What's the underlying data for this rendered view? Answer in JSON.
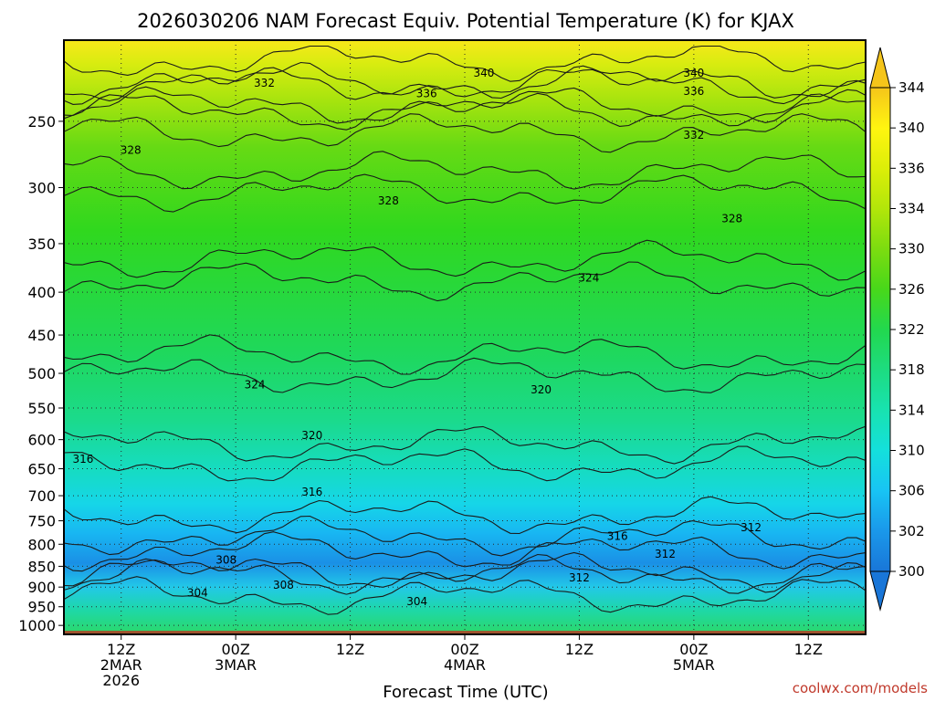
{
  "chart_data": {
    "type": "heatmap",
    "title": "2026030206 NAM Forecast Equiv. Potential Temperature (K) for KJAX",
    "xlabel": "Forecast Time (UTC)",
    "ylabel": "",
    "credit": "coolwx.com/models",
    "y_axis": {
      "scale": "pressure (log-like, inverted)",
      "range_hpa": [
        1025,
        200
      ],
      "ticks": [
        250,
        300,
        350,
        400,
        450,
        500,
        550,
        600,
        650,
        700,
        750,
        800,
        850,
        900,
        950,
        1000
      ]
    },
    "x_axis": {
      "range_hours_from_start": [
        0,
        84
      ],
      "ticks": [
        {
          "hour": 6,
          "line1": "12Z",
          "line2": "2MAR",
          "line3": "2026"
        },
        {
          "hour": 18,
          "line1": "00Z",
          "line2": "3MAR",
          "line3": ""
        },
        {
          "hour": 30,
          "line1": "12Z",
          "line2": "",
          "line3": ""
        },
        {
          "hour": 42,
          "line1": "00Z",
          "line2": "4MAR",
          "line3": ""
        },
        {
          "hour": 54,
          "line1": "12Z",
          "line2": "",
          "line3": ""
        },
        {
          "hour": 66,
          "line1": "00Z",
          "line2": "5MAR",
          "line3": ""
        },
        {
          "hour": 78,
          "line1": "12Z",
          "line2": "",
          "line3": ""
        }
      ]
    },
    "grid": true,
    "colorbar": {
      "levels": [
        300,
        302,
        306,
        310,
        314,
        318,
        322,
        326,
        330,
        334,
        336,
        340,
        344
      ],
      "colors": [
        "#1976d8",
        "#1a98ea",
        "#18c4f4",
        "#14e0dc",
        "#18e2b0",
        "#1ddc80",
        "#22d84e",
        "#48d81a",
        "#7cdc10",
        "#b2e60a",
        "#dcee08",
        "#fff510",
        "#f5c51a"
      ]
    },
    "contours": [
      {
        "level": 340,
        "label_positions": [
          [
            44,
            0.055
          ],
          [
            66,
            0.055
          ]
        ]
      },
      {
        "level": 336,
        "label_positions": [
          [
            38,
            0.09
          ],
          [
            66,
            0.086
          ]
        ]
      },
      {
        "level": 332,
        "label_positions": [
          [
            21,
            0.072
          ],
          [
            66,
            0.16
          ]
        ]
      },
      {
        "level": 328,
        "label_positions": [
          [
            7,
            0.185
          ],
          [
            34,
            0.27
          ],
          [
            70,
            0.3
          ]
        ]
      },
      {
        "level": 324,
        "label_positions": [
          [
            55,
            0.4
          ],
          [
            20,
            0.58
          ]
        ]
      },
      {
        "level": 320,
        "label_positions": [
          [
            50,
            0.588
          ],
          [
            26,
            0.665
          ]
        ]
      },
      {
        "level": 316,
        "label_positions": [
          [
            2,
            0.705
          ],
          [
            26,
            0.76
          ],
          [
            58,
            0.835
          ]
        ]
      },
      {
        "level": 312,
        "label_positions": [
          [
            72,
            0.82
          ],
          [
            63,
            0.865
          ],
          [
            54,
            0.905
          ]
        ]
      },
      {
        "level": 308,
        "label_positions": [
          [
            17,
            0.875
          ],
          [
            23,
            0.917
          ]
        ]
      },
      {
        "level": 304,
        "label_positions": [
          [
            14,
            0.93
          ],
          [
            37,
            0.945
          ]
        ]
      }
    ],
    "ground": {
      "pressure_hpa": 1015,
      "color": "#a0522d"
    }
  }
}
